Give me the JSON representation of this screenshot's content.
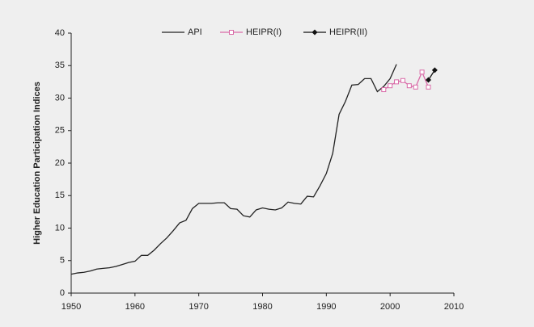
{
  "chart_data": {
    "type": "line",
    "y_label": "Higher Education Participation Indices",
    "xlim": [
      1950,
      2010
    ],
    "xticks": [
      1950,
      1960,
      1970,
      1980,
      1990,
      2000,
      2010
    ],
    "ylim": [
      0,
      40
    ],
    "yticks": [
      0,
      5,
      10,
      15,
      20,
      25,
      30,
      35,
      40
    ],
    "grid": false,
    "legend": "top",
    "series": [
      {
        "name": "API",
        "color": "#222222",
        "marker": "none",
        "x": [
          1950,
          1951,
          1952,
          1953,
          1954,
          1955,
          1956,
          1957,
          1958,
          1959,
          1960,
          1961,
          1962,
          1963,
          1964,
          1965,
          1966,
          1967,
          1968,
          1969,
          1970,
          1971,
          1972,
          1973,
          1974,
          1975,
          1976,
          1977,
          1978,
          1979,
          1980,
          1981,
          1982,
          1983,
          1984,
          1985,
          1986,
          1987,
          1988,
          1989,
          1990,
          1991,
          1992,
          1993,
          1994,
          1995,
          1996,
          1997,
          1998,
          1999,
          2000,
          2001
        ],
        "values": [
          2.9,
          3.1,
          3.2,
          3.4,
          3.7,
          3.8,
          3.9,
          4.1,
          4.4,
          4.7,
          4.9,
          5.8,
          5.8,
          6.6,
          7.6,
          8.5,
          9.6,
          10.8,
          11.2,
          13.0,
          13.8,
          13.8,
          13.8,
          13.9,
          13.9,
          13.0,
          12.9,
          11.9,
          11.7,
          12.8,
          13.1,
          12.9,
          12.8,
          13.1,
          14.0,
          13.8,
          13.7,
          14.9,
          14.8,
          16.5,
          18.4,
          21.5,
          27.5,
          29.5,
          32.0,
          32.1,
          33.0,
          33.0,
          31.0,
          31.8,
          33.0,
          35.2
        ]
      },
      {
        "name": "HEIPR(I)",
        "color": "#d96aa7",
        "marker": "open-square",
        "x": [
          1999,
          2000,
          2001,
          2002,
          2003,
          2004,
          2005,
          2006
        ],
        "values": [
          31.3,
          31.9,
          32.5,
          32.7,
          31.9,
          31.7,
          34.0,
          31.7
        ]
      },
      {
        "name": "HEIPR(II)",
        "color": "#111111",
        "marker": "filled-diamond",
        "x": [
          2006,
          2007
        ],
        "values": [
          32.8,
          34.3
        ]
      }
    ]
  }
}
